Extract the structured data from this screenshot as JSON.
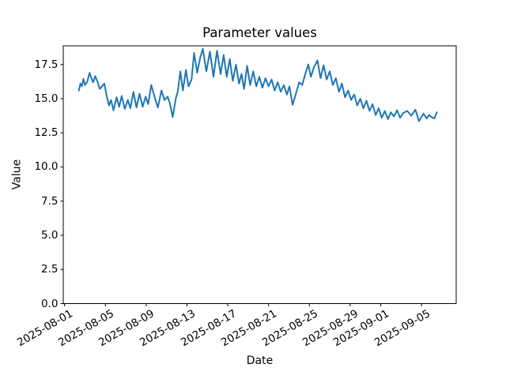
{
  "figure": {
    "background": "#ffffff"
  },
  "chart_data": {
    "type": "line",
    "title": "Parameter values",
    "xlabel": "Date",
    "ylabel": "Value",
    "grid": false,
    "legend": false,
    "x_axis": {
      "unit": "days since 2025-08-01",
      "tick_positions": [
        0,
        4,
        8,
        12,
        16,
        20,
        24,
        28,
        31,
        35
      ],
      "tick_labels": [
        "2025-08-01",
        "2025-08-05",
        "2025-08-09",
        "2025-08-13",
        "2025-08-17",
        "2025-08-21",
        "2025-08-25",
        "2025-08-29",
        "2025-09-01",
        "2025-09-05"
      ],
      "lim": [
        -0.13,
        38.4
      ]
    },
    "y_axis": {
      "tick_positions": [
        0,
        2.5,
        5,
        7.5,
        10,
        12.5,
        15,
        17.5
      ],
      "tick_labels": [
        "0.0",
        "2.5",
        "5.0",
        "7.5",
        "10.0",
        "12.5",
        "15.0",
        "17.5"
      ],
      "lim": [
        0,
        18.87
      ]
    },
    "series": [
      {
        "color": "#1f77b4",
        "x_days": [
          1.4,
          1.55,
          1.7,
          1.85,
          2.0,
          2.2,
          2.45,
          2.65,
          2.8,
          3.0,
          3.2,
          3.45,
          3.65,
          3.9,
          4.1,
          4.35,
          4.55,
          4.8,
          5.1,
          5.35,
          5.6,
          5.9,
          6.2,
          6.45,
          6.75,
          7.05,
          7.35,
          7.65,
          7.95,
          8.2,
          8.5,
          8.8,
          9.15,
          9.5,
          9.8,
          10.1,
          10.35,
          10.6,
          10.9,
          11.1,
          11.35,
          11.6,
          11.9,
          12.15,
          12.45,
          12.7,
          13.0,
          13.3,
          13.55,
          13.9,
          14.25,
          14.6,
          14.95,
          15.3,
          15.6,
          15.9,
          16.2,
          16.5,
          16.8,
          17.1,
          17.35,
          17.6,
          17.9,
          18.2,
          18.5,
          18.8,
          19.1,
          19.4,
          19.7,
          20.0,
          20.3,
          20.6,
          20.9,
          21.2,
          21.5,
          21.8,
          22.05,
          22.35,
          22.7,
          23.0,
          23.3,
          23.6,
          23.9,
          24.15,
          24.45,
          24.8,
          25.1,
          25.4,
          25.7,
          26.0,
          26.3,
          26.6,
          26.9,
          27.2,
          27.5,
          27.8,
          28.1,
          28.4,
          28.7,
          29.0,
          29.3,
          29.6,
          29.9,
          30.2,
          30.5,
          30.8,
          31.1,
          31.4,
          31.7,
          32.0,
          32.3,
          32.6,
          32.9,
          33.2,
          33.6,
          34.0,
          34.4,
          34.75,
          35.2,
          35.5,
          35.75,
          36.0,
          36.25,
          36.5
        ],
        "values": [
          15.6,
          16.1,
          15.9,
          16.45,
          16.0,
          16.2,
          16.9,
          16.45,
          16.2,
          16.65,
          16.3,
          15.7,
          15.9,
          16.1,
          15.3,
          14.5,
          14.9,
          14.15,
          15.1,
          14.4,
          15.2,
          14.25,
          14.9,
          14.3,
          15.5,
          14.35,
          15.35,
          14.4,
          15.15,
          14.6,
          16.0,
          15.2,
          14.35,
          15.6,
          14.9,
          15.15,
          14.6,
          13.65,
          15.0,
          15.55,
          17.0,
          15.6,
          17.1,
          15.9,
          16.4,
          18.35,
          16.9,
          18.0,
          18.65,
          17.0,
          18.45,
          16.6,
          18.5,
          16.8,
          18.2,
          16.6,
          17.9,
          16.3,
          17.5,
          16.1,
          16.8,
          15.7,
          17.4,
          16.0,
          17.0,
          15.9,
          16.6,
          15.8,
          16.5,
          15.9,
          16.4,
          15.6,
          16.2,
          15.5,
          16.0,
          15.3,
          15.9,
          14.55,
          15.4,
          16.2,
          16.0,
          16.8,
          17.5,
          16.6,
          17.3,
          17.8,
          16.5,
          17.45,
          16.4,
          17.0,
          16.0,
          16.5,
          15.5,
          16.1,
          15.1,
          15.6,
          14.9,
          15.3,
          14.5,
          15.0,
          14.3,
          14.85,
          14.1,
          14.6,
          13.8,
          14.3,
          13.6,
          14.1,
          13.5,
          14.0,
          13.7,
          14.15,
          13.6,
          13.95,
          14.1,
          13.75,
          14.2,
          13.35,
          13.9,
          13.55,
          13.8,
          13.65,
          13.55,
          14.0
        ]
      }
    ]
  }
}
